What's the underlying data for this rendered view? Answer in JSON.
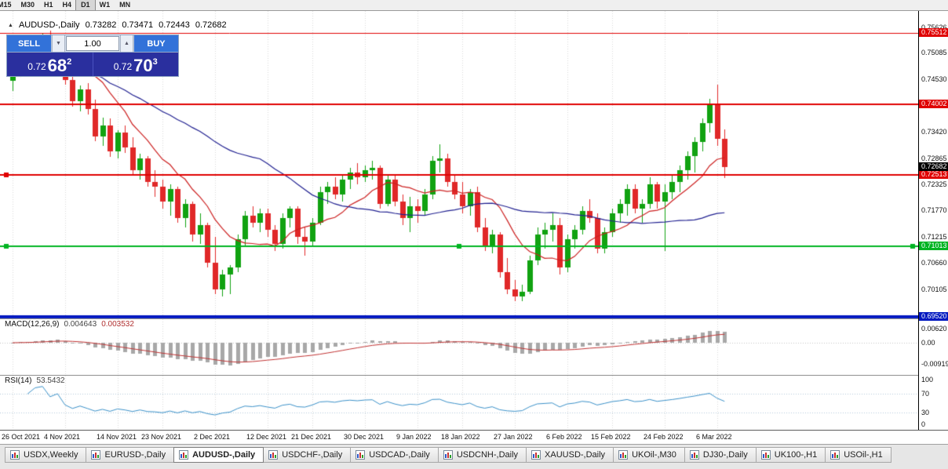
{
  "toolbar": {
    "timeframes": [
      "M15",
      "M30",
      "H1",
      "H4",
      "D1",
      "W1",
      "MN"
    ],
    "active_timeframe": "D1"
  },
  "chart_header": {
    "collapse_icon": "▲",
    "symbol": "AUDUSD-,Daily",
    "open": "0.73282",
    "high": "0.73471",
    "low": "0.72443",
    "close": "0.72682"
  },
  "trade_panel": {
    "sell_label": "SELL",
    "buy_label": "BUY",
    "volume": "1.00",
    "dec_icon": "▼",
    "inc_icon": "▲",
    "sell_price": {
      "prefix": "0.72",
      "big": "68",
      "sup": "2"
    },
    "buy_price": {
      "prefix": "0.72",
      "big": "70",
      "sup": "3"
    }
  },
  "chart_data": {
    "type": "candlestick",
    "title": "AUDUSD-,Daily",
    "up_color": "#11a211",
    "down_color": "#e02828",
    "grid_color": "#d8d8d8",
    "candles": [
      [
        0.745,
        0.748,
        0.7428,
        0.747
      ],
      [
        0.747,
        0.7512,
        0.7458,
        0.7502
      ],
      [
        0.7502,
        0.7525,
        0.7478,
        0.7488
      ],
      [
        0.7488,
        0.7532,
        0.747,
        0.7522
      ],
      [
        0.7522,
        0.755,
        0.7502,
        0.7538
      ],
      [
        0.7538,
        0.7556,
        0.7494,
        0.7505
      ],
      [
        0.7505,
        0.754,
        0.7485,
        0.7532
      ],
      [
        0.7532,
        0.7536,
        0.7442,
        0.7452
      ],
      [
        0.7452,
        0.7465,
        0.7396,
        0.7406
      ],
      [
        0.7406,
        0.744,
        0.7386,
        0.7432
      ],
      [
        0.7432,
        0.7445,
        0.7378,
        0.739
      ],
      [
        0.739,
        0.741,
        0.7322,
        0.7332
      ],
      [
        0.7332,
        0.7372,
        0.7312,
        0.7356
      ],
      [
        0.7356,
        0.737,
        0.729,
        0.7301
      ],
      [
        0.7301,
        0.7346,
        0.7286,
        0.734
      ],
      [
        0.734,
        0.7355,
        0.7298,
        0.731
      ],
      [
        0.731,
        0.733,
        0.725,
        0.7261
      ],
      [
        0.7261,
        0.7296,
        0.7241,
        0.7286
      ],
      [
        0.7286,
        0.7291,
        0.7226,
        0.7236
      ],
      [
        0.7236,
        0.7261,
        0.7206,
        0.7226
      ],
      [
        0.7226,
        0.7241,
        0.7181,
        0.7196
      ],
      [
        0.7196,
        0.7231,
        0.7166,
        0.7221
      ],
      [
        0.7221,
        0.7226,
        0.7151,
        0.7161
      ],
      [
        0.7161,
        0.7201,
        0.7141,
        0.7191
      ],
      [
        0.7191,
        0.7196,
        0.7111,
        0.7126
      ],
      [
        0.7126,
        0.7171,
        0.7106,
        0.7146
      ],
      [
        0.7146,
        0.7151,
        0.7056,
        0.7066
      ],
      [
        0.7066,
        0.7121,
        0.7001,
        0.7011
      ],
      [
        0.7011,
        0.7051,
        0.6996,
        0.7041
      ],
      [
        0.7041,
        0.7061,
        0.7001,
        0.7056
      ],
      [
        0.7056,
        0.7126,
        0.7046,
        0.7116
      ],
      [
        0.7116,
        0.7176,
        0.7101,
        0.7166
      ],
      [
        0.7166,
        0.7186,
        0.7141,
        0.7151
      ],
      [
        0.7151,
        0.7181,
        0.7131,
        0.7171
      ],
      [
        0.7171,
        0.7181,
        0.7121,
        0.7136
      ],
      [
        0.7136,
        0.7146,
        0.7091,
        0.7106
      ],
      [
        0.7106,
        0.7171,
        0.7096,
        0.7161
      ],
      [
        0.7161,
        0.7186,
        0.7141,
        0.7181
      ],
      [
        0.7181,
        0.7186,
        0.7106,
        0.7121
      ],
      [
        0.7121,
        0.7141,
        0.7082,
        0.7111
      ],
      [
        0.7111,
        0.7161,
        0.7101,
        0.7151
      ],
      [
        0.7151,
        0.7226,
        0.7146,
        0.7216
      ],
      [
        0.7216,
        0.7236,
        0.7191,
        0.7226
      ],
      [
        0.7226,
        0.7246,
        0.7201,
        0.7211
      ],
      [
        0.7211,
        0.7251,
        0.7196,
        0.7241
      ],
      [
        0.7241,
        0.7266,
        0.7221,
        0.7256
      ],
      [
        0.7256,
        0.7276,
        0.7231,
        0.7246
      ],
      [
        0.7246,
        0.7271,
        0.7236,
        0.7261
      ],
      [
        0.7261,
        0.7281,
        0.7241,
        0.7266
      ],
      [
        0.7266,
        0.7271,
        0.7181,
        0.7191
      ],
      [
        0.7191,
        0.7251,
        0.7186,
        0.7241
      ],
      [
        0.7241,
        0.7251,
        0.7186,
        0.7196
      ],
      [
        0.7196,
        0.7211,
        0.7146,
        0.7161
      ],
      [
        0.7161,
        0.7206,
        0.7131,
        0.7186
      ],
      [
        0.7186,
        0.7201,
        0.7151,
        0.7176
      ],
      [
        0.7176,
        0.7221,
        0.7166,
        0.7211
      ],
      [
        0.7211,
        0.7291,
        0.7201,
        0.7281
      ],
      [
        0.7281,
        0.7316,
        0.7256,
        0.7286
      ],
      [
        0.7286,
        0.7296,
        0.7226,
        0.7236
      ],
      [
        0.7236,
        0.7251,
        0.7201,
        0.7211
      ],
      [
        0.7211,
        0.7236,
        0.7171,
        0.7186
      ],
      [
        0.7186,
        0.7221,
        0.7166,
        0.7216
      ],
      [
        0.7216,
        0.7226,
        0.7131,
        0.7141
      ],
      [
        0.7141,
        0.7161,
        0.7091,
        0.7101
      ],
      [
        0.7101,
        0.7136,
        0.7086,
        0.7126
      ],
      [
        0.7126,
        0.7131,
        0.7036,
        0.7046
      ],
      [
        0.7046,
        0.7076,
        0.7001,
        0.7011
      ],
      [
        0.7011,
        0.7031,
        0.6986,
        0.6996
      ],
      [
        0.6996,
        0.7021,
        0.6986,
        0.7006
      ],
      [
        0.7006,
        0.7081,
        0.7001,
        0.7071
      ],
      [
        0.7071,
        0.7141,
        0.7061,
        0.7126
      ],
      [
        0.7126,
        0.7151,
        0.7096,
        0.7136
      ],
      [
        0.7136,
        0.7171,
        0.7111,
        0.7146
      ],
      [
        0.7146,
        0.7161,
        0.7041,
        0.7056
      ],
      [
        0.7056,
        0.7126,
        0.7046,
        0.7116
      ],
      [
        0.7116,
        0.7146,
        0.7096,
        0.7136
      ],
      [
        0.7136,
        0.7186,
        0.7126,
        0.7176
      ],
      [
        0.7176,
        0.7201,
        0.7151,
        0.7161
      ],
      [
        0.7161,
        0.7171,
        0.7086,
        0.7096
      ],
      [
        0.7096,
        0.7141,
        0.7086,
        0.7131
      ],
      [
        0.7131,
        0.7181,
        0.7121,
        0.7171
      ],
      [
        0.7171,
        0.7201,
        0.7151,
        0.7191
      ],
      [
        0.7191,
        0.7231,
        0.7166,
        0.7221
      ],
      [
        0.7221,
        0.7231,
        0.7171,
        0.7181
      ],
      [
        0.7181,
        0.7201,
        0.7151,
        0.7191
      ],
      [
        0.7191,
        0.7246,
        0.7181,
        0.7231
      ],
      [
        0.7231,
        0.7236,
        0.7181,
        0.7196
      ],
      [
        0.7196,
        0.7231,
        0.7091,
        0.7216
      ],
      [
        0.7216,
        0.7251,
        0.7201,
        0.7236
      ],
      [
        0.7236,
        0.7271,
        0.7216,
        0.7261
      ],
      [
        0.7261,
        0.7301,
        0.7241,
        0.7291
      ],
      [
        0.7291,
        0.7331,
        0.7256,
        0.7321
      ],
      [
        0.7321,
        0.7371,
        0.7301,
        0.7361
      ],
      [
        0.7361,
        0.7411,
        0.7341,
        0.7401
      ],
      [
        0.7401,
        0.7441,
        0.7313,
        0.7327
      ],
      [
        0.73282,
        0.73471,
        0.72443,
        0.72682
      ]
    ],
    "x_labels": [
      {
        "i": 0,
        "label": "26 Oct 2021"
      },
      {
        "i": 7,
        "label": "4 Nov 2021"
      },
      {
        "i": 14,
        "label": "14 Nov 2021"
      },
      {
        "i": 20,
        "label": "23 Nov 2021"
      },
      {
        "i": 27,
        "label": "2 Dec 2021"
      },
      {
        "i": 34,
        "label": "12 Dec 2021"
      },
      {
        "i": 40,
        "label": "21 Dec 2021"
      },
      {
        "i": 47,
        "label": "30 Dec 2021"
      },
      {
        "i": 54,
        "label": "9 Jan 2022"
      },
      {
        "i": 60,
        "label": "18 Jan 2022"
      },
      {
        "i": 67,
        "label": "27 Jan 2022"
      },
      {
        "i": 74,
        "label": "6 Feb 2022"
      },
      {
        "i": 80,
        "label": "15 Feb 2022"
      },
      {
        "i": 87,
        "label": "24 Feb 2022"
      },
      {
        "i": 94,
        "label": "6 Mar 2022"
      }
    ],
    "y_axis_labels": [
      "0.75626",
      "0.75085",
      "0.74530",
      "0.73420",
      "0.72865",
      "0.72325",
      "0.71770",
      "0.71215",
      "0.70660",
      "0.70105"
    ],
    "ma": [
      {
        "name": "ma-fast",
        "period": 10,
        "color": "#cc2020"
      },
      {
        "name": "ma-slow",
        "period": 34,
        "color": "#202090"
      }
    ],
    "h_lines": [
      {
        "price": 0.75512,
        "color": "#e00000",
        "width": 1,
        "tag": "0.75512"
      },
      {
        "price": 0.74002,
        "color": "#e00000",
        "width": 2,
        "tag": "0.74002"
      },
      {
        "price": 0.72513,
        "color": "#e00000",
        "width": 2,
        "tag": "0.72513",
        "handles": [
          "left"
        ]
      },
      {
        "price": 0.71013,
        "color": "#00b422",
        "width": 2,
        "tag": "0.71013",
        "handles": [
          "left",
          "mid",
          "right"
        ]
      },
      {
        "price": 0.6952,
        "color": "#0018c0",
        "width": 4,
        "tag": "0.69520"
      }
    ],
    "current_price": {
      "price": 0.72682,
      "label": "0.72682"
    },
    "macd": {
      "title": "MACD(12,26,9)",
      "value_main": "0.004643",
      "value_signal": "0.003532",
      "histogram_color": "#a8a8a8",
      "signal_color": "#c03232",
      "axis_labels": [
        {
          "label": "0.00620",
          "value": 0.0062
        },
        {
          "label": "0.00",
          "value": 0
        },
        {
          "label": "-0.00919",
          "value": -0.00919
        }
      ]
    },
    "rsi": {
      "title": "RSI(14)",
      "value": "53.5432",
      "line_color": "#3a90c8",
      "levels": [
        70,
        30
      ],
      "axis_labels": [
        {
          "label": "100",
          "value": 100
        },
        {
          "label": "70",
          "value": 70
        },
        {
          "label": "30",
          "value": 30
        },
        {
          "label": "0",
          "value": 0
        }
      ]
    }
  },
  "tabs": [
    {
      "label": "USDX,Weekly"
    },
    {
      "label": "EURUSD-,Daily"
    },
    {
      "label": "AUDUSD-,Daily",
      "active": true
    },
    {
      "label": "USDCHF-,Daily"
    },
    {
      "label": "USDCAD-,Daily"
    },
    {
      "label": "USDCNH-,Daily"
    },
    {
      "label": "XAUUSD-,Daily"
    },
    {
      "label": "UKOil-,M30"
    },
    {
      "label": "DJ30-,Daily"
    },
    {
      "label": "UK100-,H1"
    },
    {
      "label": "USOil-,H1"
    }
  ]
}
